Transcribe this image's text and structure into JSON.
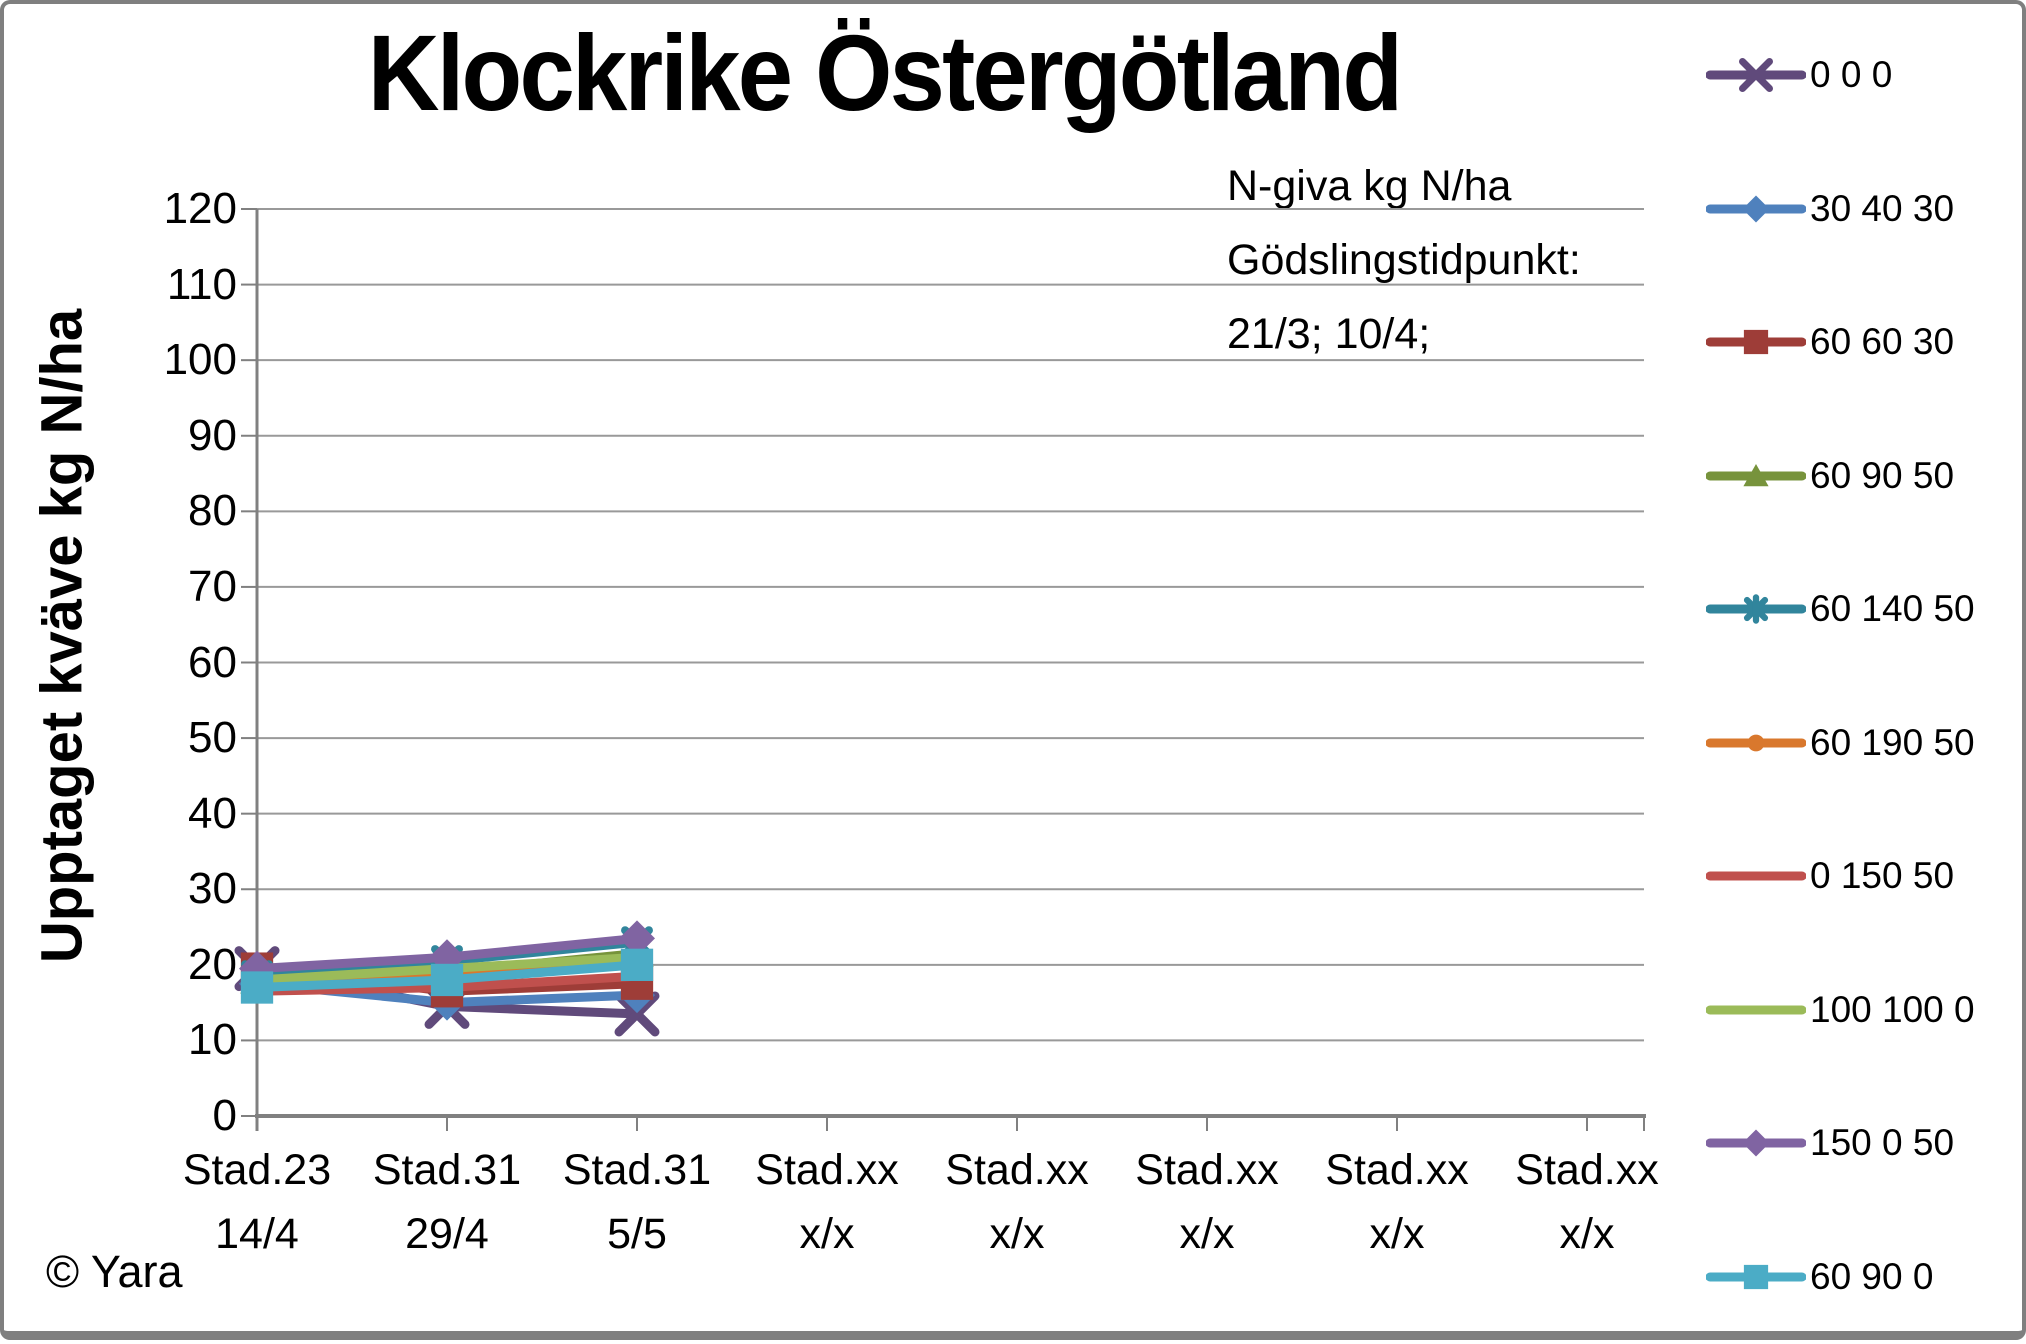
{
  "title": "Klockrike Östergötland",
  "copyright": "© Yara",
  "colors": {
    "gridline": "#999999",
    "axis": "#808080",
    "frame_border": "#7f7f7f",
    "background": "#ffffff"
  },
  "chart_data": {
    "type": "line",
    "title": "Klockrike Östergötland",
    "ylabel": "Upptaget kväve kg N/ha",
    "xlabel": "",
    "ylim": [
      0,
      120
    ],
    "yticks": [
      0,
      10,
      20,
      30,
      40,
      50,
      60,
      70,
      80,
      90,
      100,
      110,
      120
    ],
    "grid": true,
    "legend_position": "right",
    "note_lines": [
      "N-giva kg N/ha",
      "Gödslingstidpunkt:",
      "21/3; 10/4;"
    ],
    "categories": [
      [
        "Stad.23",
        "14/4"
      ],
      [
        "Stad.31",
        "29/4"
      ],
      [
        "Stad.31",
        "5/5"
      ],
      [
        "Stad.xx",
        "x/x"
      ],
      [
        "Stad.xx",
        "x/x"
      ],
      [
        "Stad.xx",
        "x/x"
      ],
      [
        "Stad.xx",
        "x/x"
      ],
      [
        "Stad.xx",
        "x/x"
      ]
    ],
    "series": [
      {
        "name": "0 0 0",
        "color": "#604A7B",
        "marker": "x",
        "values": [
          19.5,
          14.5,
          13.5
        ]
      },
      {
        "name": "30 40 30",
        "color": "#4F81BD",
        "marker": "diamond",
        "values": [
          17.5,
          15,
          16
        ]
      },
      {
        "name": "60 60 30",
        "color": "#9E3D38",
        "marker": "square",
        "values": [
          19.5,
          16.5,
          17.5
        ]
      },
      {
        "name": "60 90 50",
        "color": "#77933C",
        "marker": "triangle",
        "values": [
          18,
          19,
          21.5
        ]
      },
      {
        "name": "60 140 50",
        "color": "#31859C",
        "marker": "asterisk",
        "values": [
          18.5,
          20.5,
          23
        ]
      },
      {
        "name": "60 190 50",
        "color": "#D9782D",
        "marker": "circle",
        "values": [
          17.5,
          18.5,
          20.5
        ]
      },
      {
        "name": "0 150 50",
        "color": "#C0504D",
        "marker": "none",
        "values": [
          16.5,
          17,
          18.5
        ]
      },
      {
        "name": "100 100 0",
        "color": "#9BBB59",
        "marker": "none",
        "values": [
          18,
          19.5,
          21
        ]
      },
      {
        "name": "150 0 50",
        "color": "#8064A2",
        "marker": "diamond",
        "values": [
          19.5,
          21,
          23.5
        ]
      },
      {
        "name": "60 90 0",
        "color": "#4BACC6",
        "marker": "square",
        "values": [
          17,
          18,
          20
        ]
      }
    ]
  }
}
